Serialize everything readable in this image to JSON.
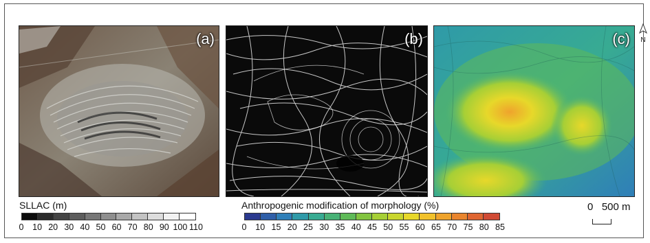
{
  "panels": [
    {
      "label": "(a)",
      "kind": "satellite-image"
    },
    {
      "label": "(b)",
      "kind": "slope-texture-map"
    },
    {
      "label": "(c)",
      "kind": "modification-heatmap"
    }
  ],
  "north_arrow": {
    "letter": "N",
    "icon": "north-arrow-icon"
  },
  "legend_sllac": {
    "title": "SLLAC (m)",
    "ticks": [
      "0",
      "10",
      "20",
      "30",
      "40",
      "50",
      "60",
      "70",
      "80",
      "90",
      "100",
      "110"
    ],
    "colors": [
      "#0c0c0c",
      "#2b2b2b",
      "#444444",
      "#5d5d5d",
      "#777777",
      "#8f8f8f",
      "#a9a9a9",
      "#c3c3c3",
      "#dddddd",
      "#f2f2f2",
      "#ffffff"
    ]
  },
  "legend_modification": {
    "title": "Anthropogenic modification of morphology (%)",
    "ticks": [
      "0",
      "10",
      "15",
      "20",
      "25",
      "30",
      "35",
      "40",
      "45",
      "50",
      "55",
      "60",
      "65",
      "70",
      "75",
      "80",
      "85"
    ],
    "colors": [
      "#2b3a8f",
      "#2f5fa8",
      "#2f7fb8",
      "#2f9aa8",
      "#38ab92",
      "#48b276",
      "#5fba58",
      "#82c440",
      "#a6cf36",
      "#c9d62e",
      "#e7d82a",
      "#f1c12b",
      "#efa32c",
      "#e9852e",
      "#df6531",
      "#d04a34"
    ]
  },
  "scale_bar": {
    "text": "0   500 m"
  }
}
